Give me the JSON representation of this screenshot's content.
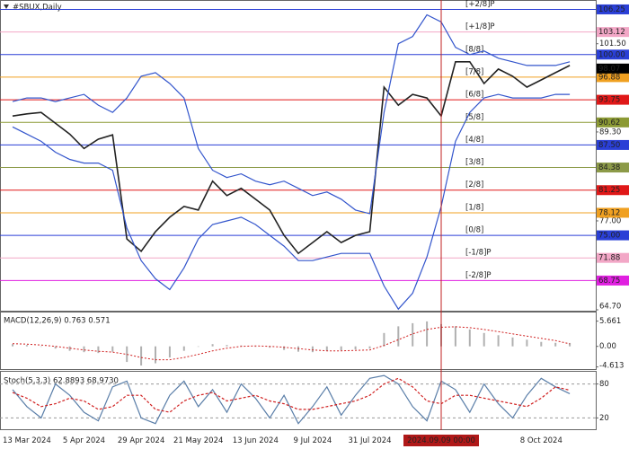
{
  "chart_data": [
    {
      "type": "line",
      "title": "#SBUX,Daily",
      "categories": [
        null,
        "13 Mar 2024",
        null,
        null,
        null,
        "5 Apr 2024",
        null,
        null,
        null,
        "29 Apr 2024",
        null,
        null,
        null,
        "21 May 2024",
        null,
        null,
        null,
        "13 Jun 2024",
        null,
        null,
        null,
        "9 Jul 2024",
        null,
        null,
        null,
        "31 Jul 2024",
        null,
        null,
        null,
        null,
        "2024.09.09 00:00",
        null,
        null,
        null,
        null,
        null,
        null,
        "8 Oct 2024",
        null,
        null
      ],
      "series": [
        {
          "color": "#222222",
          "values": [
            91.5,
            91.8,
            92.0,
            90.5,
            89.0,
            87.0,
            88.3,
            88.9,
            74.5,
            72.8,
            75.5,
            77.5,
            79.0,
            78.5,
            82.5,
            80.5,
            81.5,
            80.0,
            78.5,
            75.0,
            72.5,
            74.0,
            75.5,
            74.0,
            75.0,
            75.5,
            95.5,
            93.0,
            94.5,
            94.0,
            91.5,
            99.0,
            99.0,
            96.0,
            98.0,
            97.0,
            95.5,
            96.5,
            97.5,
            98.5
          ]
        },
        {
          "color": "#3355cc",
          "values": [
            93.5,
            94,
            94,
            93.5,
            94,
            94.5,
            93,
            92,
            94,
            97,
            97.5,
            96,
            94,
            87,
            84,
            83,
            83.5,
            82.5,
            82,
            82.5,
            81.5,
            80.5,
            81,
            80,
            78.5,
            78,
            92,
            101.5,
            102.5,
            105.5,
            104.5,
            101,
            100,
            100.5,
            99.5,
            99,
            98.5,
            98.5,
            98.5,
            99
          ]
        },
        {
          "color": "#3355cc",
          "values": [
            90,
            89,
            88,
            86.5,
            85.5,
            85,
            85,
            84,
            76,
            71.5,
            69,
            67.5,
            70.5,
            74.5,
            76.5,
            77,
            77.5,
            76.5,
            75,
            73.5,
            71.5,
            71.5,
            72,
            72.5,
            72.5,
            72.5,
            68,
            64.8,
            67,
            72,
            79,
            88,
            92,
            94,
            94.5,
            94,
            94,
            94,
            94.5,
            94.5
          ]
        }
      ],
      "ylim": [
        64.7,
        107.3
      ],
      "yticks": [
        {
          "value": 101.5,
          "label": "101.50"
        },
        {
          "value": 89.3,
          "label": "89.30"
        },
        {
          "value": 77,
          "label": "77.00"
        },
        {
          "value": 64.7,
          "label": "64.70"
        }
      ],
      "levels": [
        {
          "name": "[+2/8]P",
          "value": 106.25,
          "color": "#2a3fd6"
        },
        {
          "name": "[+1/8]P",
          "value": 103.12,
          "color": "#f2a7c6"
        },
        {
          "name": "[8/8]",
          "value": 100,
          "label": "100.00",
          "color": "#2a3fd6"
        },
        {
          "name": "[7/8]",
          "value": 96.88,
          "color": "#f0a020"
        },
        {
          "name": "[6/8]",
          "value": 93.75,
          "color": "#e01818"
        },
        {
          "name": "[5/8]",
          "value": 90.62,
          "color": "#8c9a34"
        },
        {
          "name": "[4/8]",
          "value": 87.5,
          "label": "87.50",
          "color": "#2a3fd6"
        },
        {
          "name": "[3/8]",
          "value": 84.38,
          "color": "#8c9a48"
        },
        {
          "name": "[2/8]",
          "value": 81.25,
          "color": "#e01818"
        },
        {
          "name": "[1/8]",
          "value": 78.12,
          "color": "#f0a020"
        },
        {
          "name": "[0/8]",
          "value": 75,
          "label": "75.00",
          "color": "#2a3fd6"
        },
        {
          "name": "[-1/8]P",
          "value": 71.88,
          "color": "#f2a7c6"
        },
        {
          "name": "[-2/8]P",
          "value": 68.75,
          "color": "#e020e0"
        }
      ],
      "last_price": 98.07,
      "cursor_index": 30
    },
    {
      "type": "bar",
      "title": "MACD(12,26,9) 0.763 0.571",
      "series": [
        {
          "color": "#b0b0b0",
          "values": [
            0.5,
            0.3,
            0,
            -0.5,
            -1,
            -1.3,
            -1.5,
            -1.2,
            -3.5,
            -4.3,
            -3.8,
            -2.5,
            -1,
            0,
            0.5,
            0.3,
            0.2,
            0,
            -0.3,
            -0.8,
            -1.2,
            -1.3,
            -1,
            -0.9,
            -0.7,
            -0.5,
            3,
            4.5,
            5.2,
            5.6,
            5.0,
            4.5,
            3.8,
            3.0,
            2.5,
            2.0,
            1.5,
            1.0,
            0.8,
            0.763
          ]
        },
        {
          "color": "#d02020",
          "values": [
            0.6,
            0.5,
            0.3,
            0,
            -0.4,
            -0.8,
            -1.1,
            -1.3,
            -1.8,
            -2.5,
            -3.0,
            -3.0,
            -2.5,
            -1.8,
            -1.0,
            -0.4,
            0,
            0.1,
            0,
            -0.2,
            -0.5,
            -0.8,
            -1.0,
            -1.0,
            -0.9,
            -0.8,
            0.2,
            1.5,
            2.8,
            3.8,
            4.3,
            4.4,
            4.2,
            3.8,
            3.3,
            2.8,
            2.3,
            1.8,
            1.3,
            0.571
          ]
        }
      ],
      "ylim": [
        -5.1,
        7.6
      ],
      "yticks": [
        5.661,
        {
          "value": 0,
          "label": "0.00"
        },
        -4.613
      ]
    },
    {
      "type": "line",
      "title": "Stoch(5,3,3) 62.8893 68.9730",
      "series": [
        {
          "color": "#5a7ea8",
          "values": [
            70,
            40,
            20,
            80,
            60,
            30,
            15,
            75,
            85,
            20,
            10,
            60,
            85,
            40,
            70,
            30,
            80,
            55,
            20,
            60,
            10,
            40,
            75,
            25,
            60,
            90,
            95,
            80,
            40,
            15,
            85,
            70,
            30,
            80,
            45,
            20,
            60,
            90,
            75,
            62.8893
          ]
        },
        {
          "color": "#d02020",
          "values": [
            65,
            55,
            40,
            45,
            55,
            50,
            35,
            40,
            60,
            60,
            35,
            30,
            50,
            60,
            65,
            50,
            55,
            60,
            50,
            45,
            35,
            35,
            40,
            45,
            50,
            60,
            80,
            90,
            75,
            50,
            45,
            60,
            60,
            55,
            50,
            45,
            40,
            55,
            75,
            68.973
          ]
        }
      ],
      "ylim": [
        0,
        100
      ],
      "yticks": [
        20,
        80
      ]
    }
  ]
}
